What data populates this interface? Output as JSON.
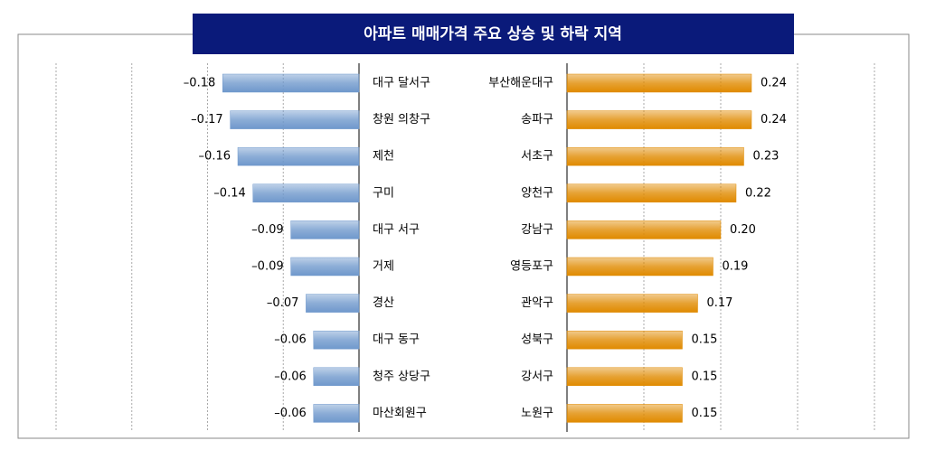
{
  "chart_data": [
    {
      "type": "bar",
      "orientation": "horizontal",
      "title": "아파트 매매가격 주요 상승 및 하락 지역",
      "categories": [
        "대구 달서구",
        "창원 의창구",
        "제천",
        "구미",
        "대구 서구",
        "거제",
        "경산",
        "대구 동구",
        "청주 상당구",
        "마산회원구"
      ],
      "values": [
        -0.18,
        -0.17,
        -0.16,
        -0.14,
        -0.09,
        -0.09,
        -0.07,
        -0.06,
        -0.06,
        -0.06
      ],
      "value_labels": [
        "–0.18",
        "–0.17",
        "–0.16",
        "–0.14",
        "–0.09",
        "–0.09",
        "–0.07",
        "–0.06",
        "–0.06",
        "–0.06"
      ],
      "color": "#6f98cc",
      "xlim": [
        -0.4,
        0
      ],
      "xticks": [
        -0.4,
        -0.3,
        -0.2,
        -0.1,
        0
      ],
      "grid": true
    },
    {
      "type": "bar",
      "orientation": "horizontal",
      "categories": [
        "부산해운대구",
        "송파구",
        "서초구",
        "양천구",
        "강남구",
        "영등포구",
        "관악구",
        "성북구",
        "강서구",
        "노원구"
      ],
      "values": [
        0.24,
        0.24,
        0.23,
        0.22,
        0.2,
        0.19,
        0.17,
        0.15,
        0.15,
        0.15
      ],
      "value_labels": [
        "0.24",
        "0.24",
        "0.23",
        "0.22",
        "0.20",
        "0.19",
        "0.17",
        "0.15",
        "0.15",
        "0.15"
      ],
      "color": "#e08a00",
      "xlim": [
        0,
        0.4
      ],
      "xticks": [
        0,
        0.1,
        0.2,
        0.3,
        0.4
      ],
      "grid": true
    }
  ]
}
